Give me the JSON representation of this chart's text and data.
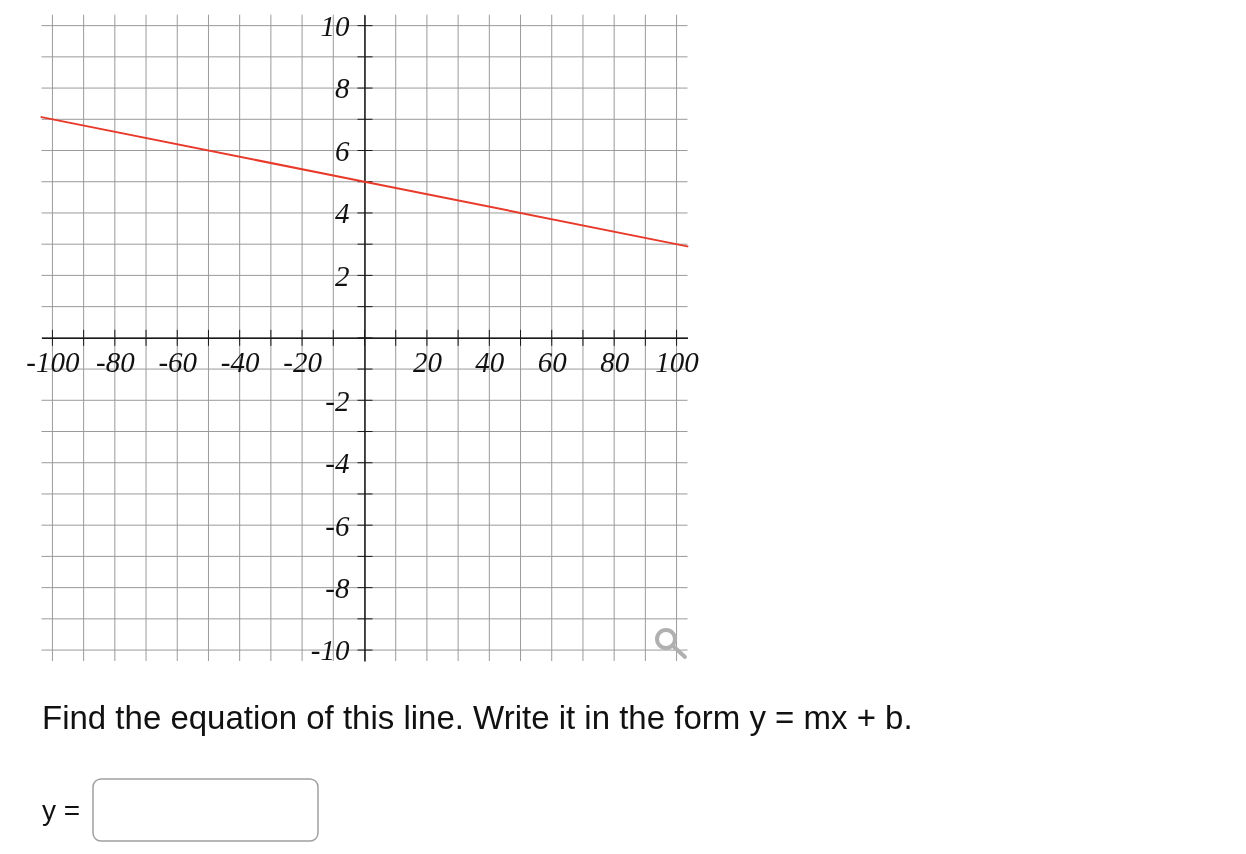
{
  "chart_data": {
    "type": "line",
    "x": [
      -103.5,
      0,
      103.5
    ],
    "series": [
      {
        "color": "#e8392a",
        "values": [
          7.07,
          5,
          2.93
        ]
      }
    ],
    "xlim": [
      -103.5,
      103.5
    ],
    "ylim": [
      -10.35,
      10.35
    ],
    "xticks": [
      -100,
      {
        "value": -90,
        "label": null
      },
      -80,
      {
        "value": -70,
        "label": null
      },
      -60,
      {
        "value": -50,
        "label": null
      },
      -40,
      {
        "value": -30,
        "label": null
      },
      -20,
      {
        "value": -10,
        "label": null
      },
      {
        "value": 0,
        "label": null
      },
      {
        "value": 10,
        "label": null
      },
      20,
      {
        "value": 30,
        "label": null
      },
      40,
      {
        "value": 50,
        "label": null
      },
      60,
      {
        "value": 70,
        "label": null
      },
      80,
      {
        "value": 90,
        "label": null
      },
      100
    ],
    "yticks": [
      -10,
      {
        "value": -9,
        "label": null
      },
      -8,
      {
        "value": -7,
        "label": null
      },
      -6,
      {
        "value": -5,
        "label": null
      },
      -4,
      {
        "value": -3,
        "label": null
      },
      -2,
      {
        "value": -1,
        "label": null
      },
      {
        "value": 0,
        "label": null
      },
      {
        "value": 1,
        "label": null
      },
      2,
      {
        "value": 3,
        "label": null
      },
      4,
      {
        "value": 5,
        "label": null
      },
      6,
      {
        "value": 7,
        "label": null
      },
      8,
      {
        "value": 9,
        "label": null
      },
      10
    ],
    "grid": true,
    "annotations": [
      "Find the equation of this line. Write it in the form y = mx + b.",
      "y ="
    ]
  }
}
